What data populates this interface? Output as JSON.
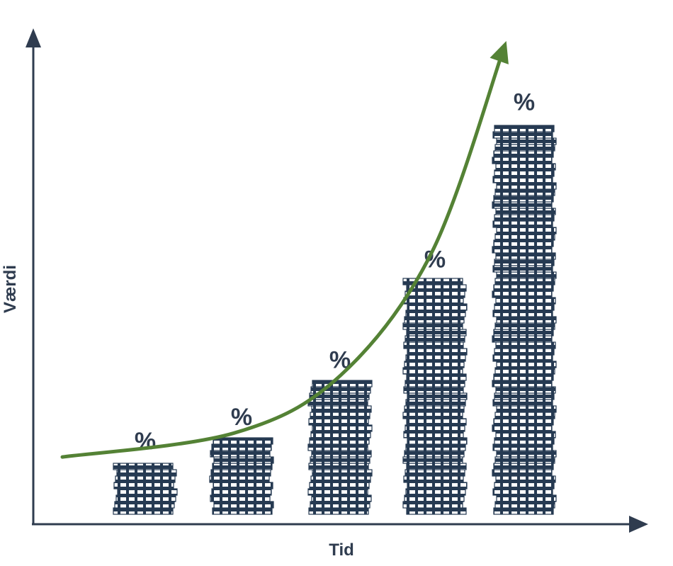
{
  "chart_data": {
    "type": "bar",
    "title": "",
    "xlabel": "Tid",
    "ylabel": "Værdi",
    "categories": [
      "",
      "",
      "",
      "",
      ""
    ],
    "values": [
      11,
      16,
      28,
      49,
      82
    ],
    "bar_labels": [
      "%",
      "%",
      "%",
      "%",
      "%"
    ],
    "ylim": [
      0,
      100
    ],
    "grid": false,
    "legend": "none",
    "trend": {
      "type": "exponential-arrow",
      "values": [
        12,
        17,
        29,
        55,
        98
      ]
    }
  },
  "colors": {
    "axis": "#2f3c4f",
    "stack": "#263a52",
    "trend": "#548235"
  },
  "icons": {
    "bar_mark": "coin-stack-icon",
    "trend_mark": "growth-arrow-icon"
  }
}
